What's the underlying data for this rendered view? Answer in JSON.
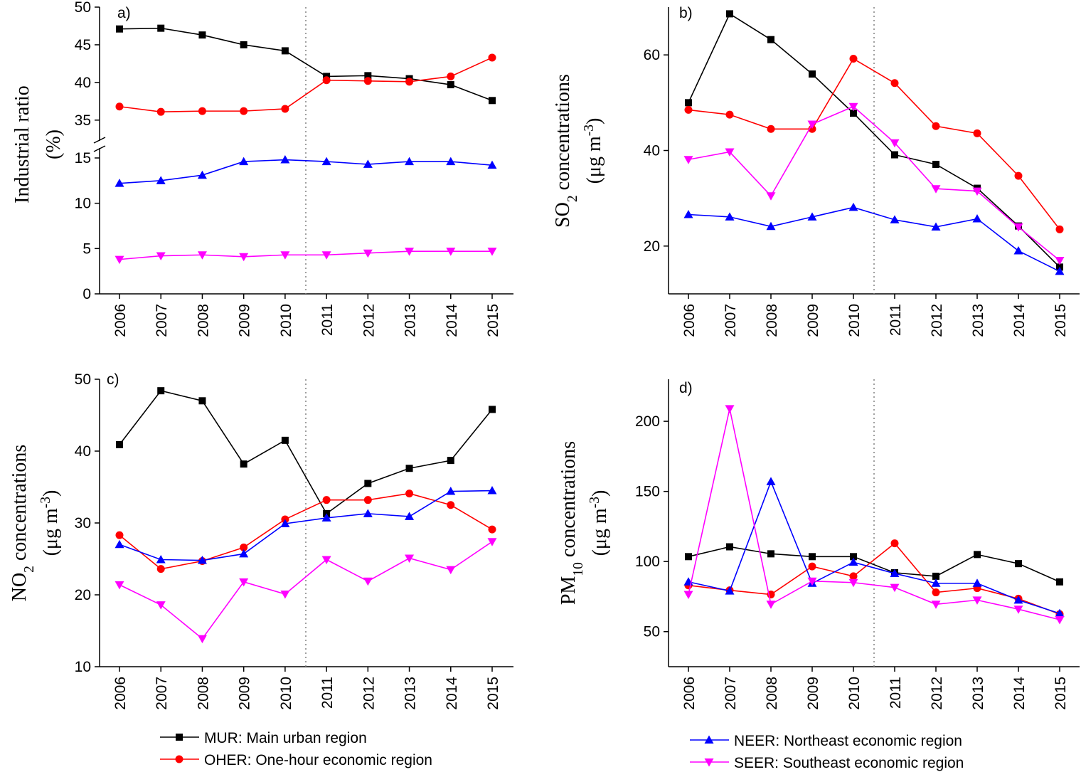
{
  "chart_data": [
    {
      "type": "line",
      "panel_label": "a)",
      "ylabel_line1": "Industrial ratio",
      "ylabel_line2": "(%)",
      "broken_axis": true,
      "ylim_upper": [
        33,
        50
      ],
      "yticks_upper": [
        35,
        40,
        45,
        50
      ],
      "ylim_lower": [
        0,
        15
      ],
      "yticks_lower": [
        0,
        5,
        10,
        15
      ],
      "categories": [
        "2006",
        "2007",
        "2008",
        "2009",
        "2010",
        "2011",
        "2012",
        "2013",
        "2014",
        "2015"
      ],
      "series": [
        {
          "name": "MUR",
          "values": [
            47.1,
            47.2,
            46.3,
            45.0,
            44.2,
            40.8,
            40.9,
            40.5,
            39.7,
            37.6
          ]
        },
        {
          "name": "OHER",
          "values": [
            36.8,
            36.1,
            36.2,
            36.2,
            36.5,
            40.3,
            40.2,
            40.1,
            40.8,
            43.3
          ]
        },
        {
          "name": "NEER",
          "values": [
            12.2,
            12.5,
            13.1,
            14.6,
            14.8,
            14.6,
            14.3,
            14.6,
            14.6,
            14.2
          ]
        },
        {
          "name": "SEER",
          "values": [
            3.8,
            4.2,
            4.3,
            4.1,
            4.3,
            4.3,
            4.5,
            4.7,
            4.7,
            4.7
          ]
        }
      ]
    },
    {
      "type": "line",
      "panel_label": "b)",
      "ylabel_line1": "SO2 concentrations",
      "ylabel_line2": "(μg m-3)",
      "ylim": [
        10,
        70
      ],
      "yticks": [
        20,
        40,
        60
      ],
      "categories": [
        "2006",
        "2007",
        "2008",
        "2009",
        "2010",
        "2011",
        "2012",
        "2013",
        "2014",
        "2015"
      ],
      "series": [
        {
          "name": "MUR",
          "values": [
            50.0,
            68.6,
            63.2,
            56.0,
            47.8,
            39.1,
            37.1,
            32.1,
            24.2,
            15.6
          ]
        },
        {
          "name": "OHER",
          "values": [
            48.5,
            47.5,
            44.5,
            44.5,
            59.2,
            54.1,
            45.1,
            43.6,
            34.7,
            23.5
          ]
        },
        {
          "name": "NEER",
          "values": [
            26.6,
            26.1,
            24.1,
            26.1,
            28.1,
            25.5,
            24.0,
            25.7,
            19.0,
            14.7
          ]
        },
        {
          "name": "SEER",
          "values": [
            38.1,
            39.7,
            30.5,
            45.5,
            49.2,
            41.6,
            32.0,
            31.5,
            24.0,
            17.0
          ]
        }
      ]
    },
    {
      "type": "line",
      "panel_label": "c)",
      "ylabel_line1": "NO2 concentrations",
      "ylabel_line2": "(μg m-3)",
      "ylim": [
        10,
        50
      ],
      "yticks": [
        10,
        20,
        30,
        40,
        50
      ],
      "categories": [
        "2006",
        "2007",
        "2008",
        "2009",
        "2010",
        "2011",
        "2012",
        "2013",
        "2014",
        "2015"
      ],
      "series": [
        {
          "name": "MUR",
          "values": [
            40.9,
            48.4,
            47.0,
            38.2,
            41.5,
            31.3,
            35.5,
            37.6,
            38.7,
            45.8
          ]
        },
        {
          "name": "OHER",
          "values": [
            28.3,
            23.6,
            24.7,
            26.6,
            30.5,
            33.2,
            33.2,
            34.1,
            32.5,
            29.1
          ]
        },
        {
          "name": "NEER",
          "values": [
            27.0,
            24.9,
            24.8,
            25.7,
            29.9,
            30.7,
            31.3,
            30.9,
            34.4,
            34.5
          ]
        },
        {
          "name": "SEER",
          "values": [
            21.4,
            18.6,
            13.9,
            21.8,
            20.1,
            24.9,
            21.9,
            25.1,
            23.5,
            27.4
          ]
        }
      ]
    },
    {
      "type": "line",
      "panel_label": "d)",
      "ylabel_line1": "PM10 concentrations",
      "ylabel_line2": "(μg m-3)",
      "ylim": [
        25,
        230
      ],
      "yticks": [
        50,
        100,
        150,
        200
      ],
      "categories": [
        "2006",
        "2007",
        "2008",
        "2009",
        "2010",
        "2011",
        "2012",
        "2013",
        "2014",
        "2015"
      ],
      "series": [
        {
          "name": "MUR",
          "values": [
            103.5,
            110.5,
            105.5,
            103.5,
            103.5,
            92.0,
            89.5,
            105.0,
            98.5,
            85.5
          ]
        },
        {
          "name": "OHER",
          "values": [
            83.0,
            79.5,
            76.5,
            96.5,
            89.5,
            113.0,
            78.0,
            81.0,
            73.5,
            62.5
          ]
        },
        {
          "name": "NEER",
          "values": [
            85.5,
            79.0,
            157.0,
            84.5,
            99.5,
            91.5,
            84.5,
            84.5,
            72.5,
            63.0
          ]
        },
        {
          "name": "SEER",
          "values": [
            76.5,
            209.0,
            69.5,
            86.0,
            85.0,
            81.5,
            69.5,
            72.5,
            66.0,
            58.5
          ]
        }
      ]
    }
  ],
  "styles": {
    "MUR": {
      "color": "#000000",
      "marker": "square"
    },
    "OHER": {
      "color": "#ff0000",
      "marker": "circle"
    },
    "NEER": {
      "color": "#0000ff",
      "marker": "triangle-up"
    },
    "SEER": {
      "color": "#ff00ff",
      "marker": "triangle-down"
    },
    "divider_color": "#808080"
  },
  "legend": [
    {
      "key": "MUR",
      "abbr": "MUR",
      "desc": "Main urban region"
    },
    {
      "key": "OHER",
      "abbr": "OHER",
      "desc": "One-hour economic region"
    },
    {
      "key": "NEER",
      "abbr": "NEER",
      "desc": "Northeast economic region"
    },
    {
      "key": "SEER",
      "abbr": "SEER",
      "desc": "Southeast economic region"
    }
  ]
}
